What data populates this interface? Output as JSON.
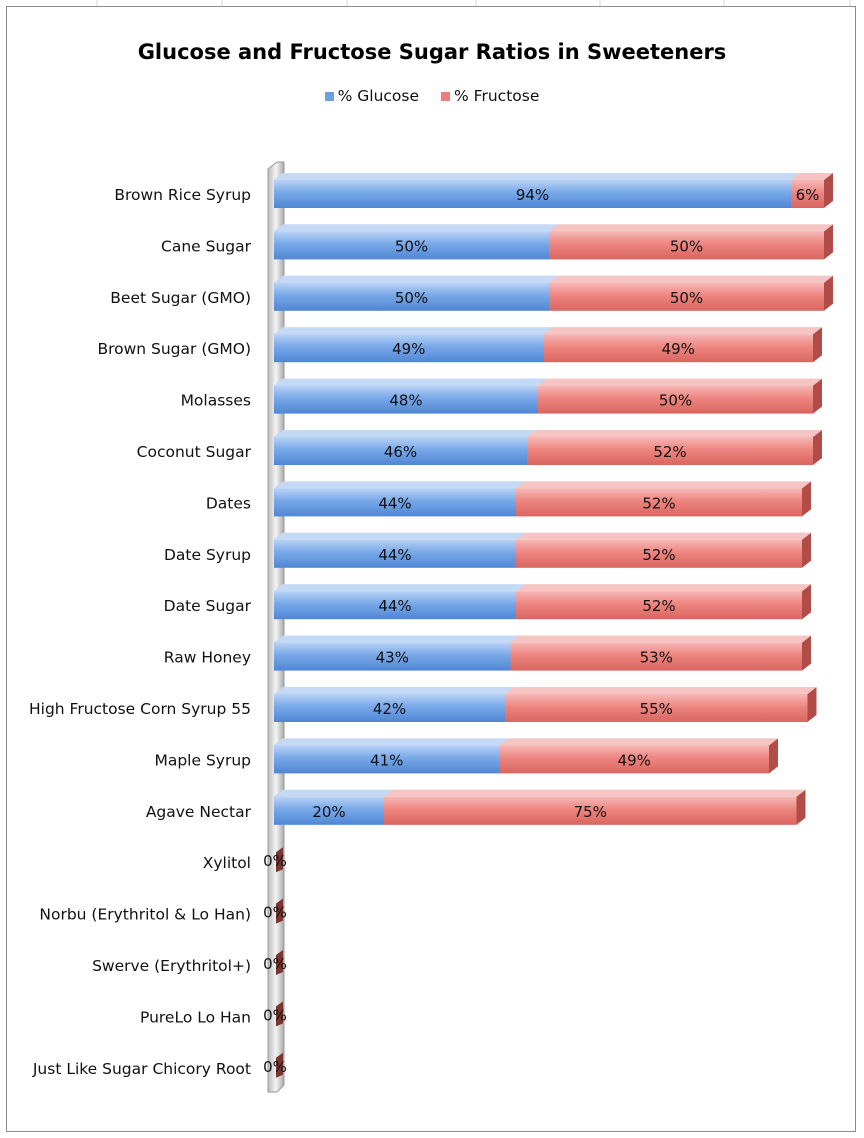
{
  "chart_data": {
    "type": "bar",
    "orientation": "horizontal",
    "stacked": true,
    "title": "Glucose and Fructose Sugar Ratios in Sweeteners",
    "legend_position": "top",
    "grid": false,
    "xlim": [
      0,
      100
    ],
    "categories": [
      "Brown Rice Syrup",
      "Cane Sugar",
      "Beet Sugar (GMO)",
      "Brown Sugar (GMO)",
      "Molasses",
      "Coconut Sugar",
      "Dates",
      "Date Syrup",
      "Date Sugar",
      "Raw Honey",
      "High Fructose Corn Syrup 55",
      "Maple Syrup",
      "Agave Nectar",
      "Xylitol",
      "Norbu (Erythritol & Lo Han)",
      "Swerve (Erythritol+)",
      "PureLo Lo Han",
      "Just Like Sugar Chicory Root"
    ],
    "series": [
      {
        "name": "% Glucose",
        "color": "#6a9fe4",
        "values": [
          94,
          50,
          50,
          49,
          48,
          46,
          44,
          44,
          44,
          43,
          42,
          41,
          20,
          0,
          0,
          0,
          0,
          0
        ],
        "labels": [
          "94%",
          "50%",
          "50%",
          "49%",
          "48%",
          "46%",
          "44%",
          "44%",
          "44%",
          "43%",
          "42%",
          "41%",
          "20%",
          "0%",
          "0%",
          "0%",
          "0%",
          "0%"
        ]
      },
      {
        "name": "% Fructose",
        "color": "#ec7f7b",
        "values": [
          6,
          50,
          50,
          49,
          50,
          52,
          52,
          52,
          52,
          53,
          55,
          49,
          75,
          0,
          0,
          0,
          0,
          0
        ],
        "labels": [
          "6%",
          "50%",
          "50%",
          "49%",
          "50%",
          "52%",
          "52%",
          "52%",
          "52%",
          "53%",
          "55%",
          "49%",
          "75%",
          "",
          "",
          "",
          "",
          ""
        ]
      }
    ]
  }
}
